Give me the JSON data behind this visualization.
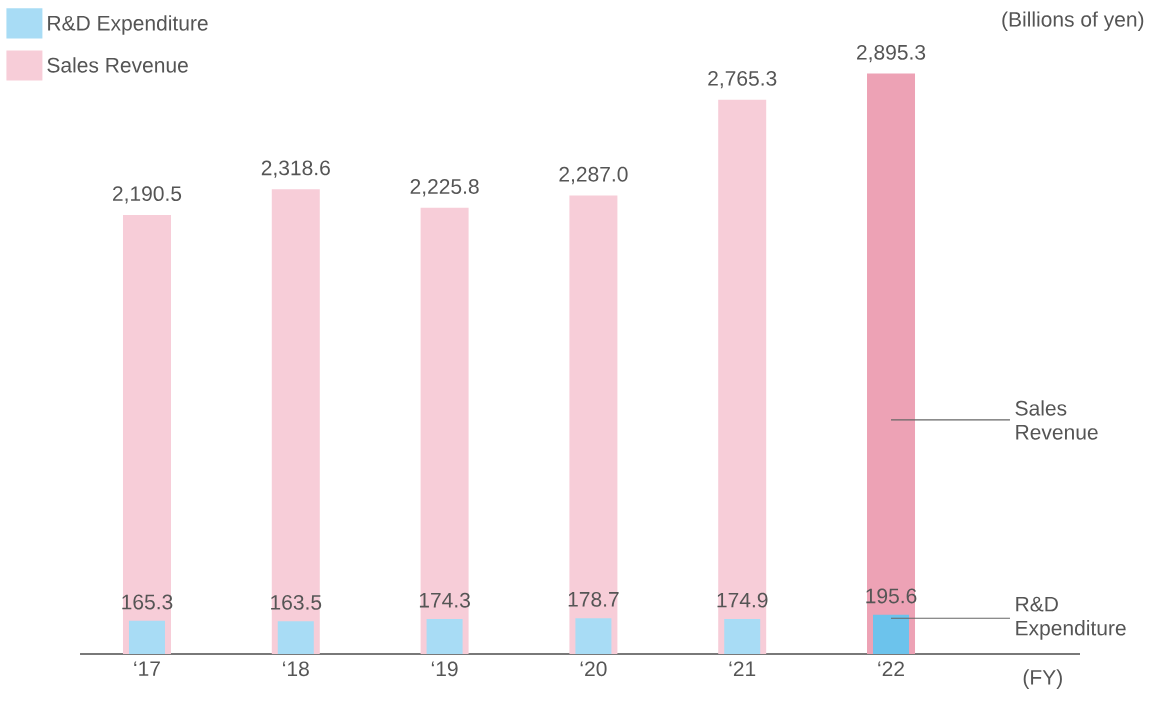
{
  "chart_data": {
    "type": "bar",
    "categories": [
      "‘17",
      "‘18",
      "‘19",
      "‘20",
      "‘21",
      "‘22"
    ],
    "series": [
      {
        "name": "R&D Expenditure",
        "color": "#a8dcf5",
        "colors": [
          "#a8dcf5",
          "#a8dcf5",
          "#a8dcf5",
          "#a8dcf5",
          "#a8dcf5",
          "#6cc3ec"
        ],
        "values": [
          165.3,
          163.5,
          174.3,
          178.7,
          174.9,
          195.6
        ],
        "value_labels": [
          "165.3",
          "163.5",
          "174.3",
          "178.7",
          "174.9",
          "195.6"
        ]
      },
      {
        "name": "Sales Revenue",
        "color": "#f7cdd8",
        "colors": [
          "#f7cdd8",
          "#f7cdd8",
          "#f7cdd8",
          "#f7cdd8",
          "#f7cdd8",
          "#eda2b5"
        ],
        "values": [
          2190.5,
          2318.6,
          2225.8,
          2287.0,
          2765.3,
          2895.3
        ],
        "value_labels": [
          "2,190.5",
          "2,318.6",
          "2,225.8",
          "2,287.0",
          "2,765.3",
          "2,895.3"
        ]
      }
    ],
    "xlabel": "(FY)",
    "legend": "top left",
    "annotations": [
      "(Billions of yen)",
      "Sales Revenue",
      "R&D Expenditure"
    ]
  }
}
